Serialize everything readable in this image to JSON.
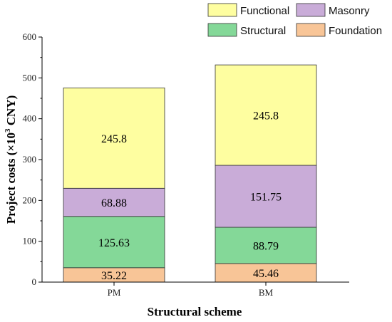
{
  "chart_data": {
    "type": "bar",
    "stacked": true,
    "categories": [
      "PM",
      "BM"
    ],
    "series": [
      {
        "name": "Foundation",
        "values": [
          35.22,
          45.46
        ],
        "color": "#f8c597"
      },
      {
        "name": "Structural",
        "values": [
          125.63,
          88.79
        ],
        "color": "#84d898"
      },
      {
        "name": "Masonry",
        "values": [
          68.88,
          151.75
        ],
        "color": "#c9acd8"
      },
      {
        "name": "Functional",
        "values": [
          245.8,
          245.8
        ],
        "color": "#fefea0"
      }
    ],
    "xlabel": "Structural scheme",
    "ylabel_prefix": "Project costs (×10",
    "ylabel_exp": "3",
    "ylabel_suffix": " CNY)",
    "ylim": [
      0,
      600
    ],
    "yticks": [
      0,
      100,
      200,
      300,
      400,
      500,
      600
    ],
    "legend_position": "top",
    "legend_order": [
      "Functional",
      "Masonry",
      "Structural",
      "Foundation"
    ],
    "grid": false
  }
}
